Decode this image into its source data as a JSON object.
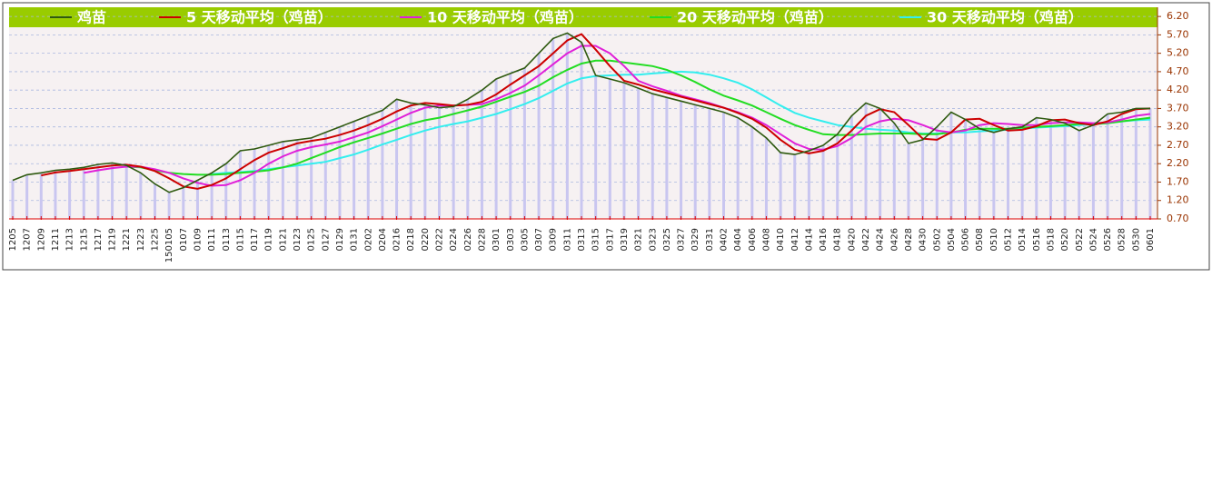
{
  "chart_data": {
    "type": "line",
    "categories": [
      "1205",
      "1207",
      "1209",
      "1211",
      "1213",
      "1215",
      "1217",
      "1219",
      "1221",
      "1223",
      "1225",
      "150105",
      "0107",
      "0109",
      "0111",
      "0113",
      "0115",
      "0117",
      "0119",
      "0121",
      "0123",
      "0125",
      "0127",
      "0129",
      "0131",
      "0202",
      "0204",
      "0216",
      "0218",
      "0220",
      "0222",
      "0224",
      "0226",
      "0228",
      "0301",
      "0303",
      "0305",
      "0307",
      "0309",
      "0311",
      "0313",
      "0315",
      "0317",
      "0319",
      "0321",
      "0323",
      "0325",
      "0327",
      "0329",
      "0331",
      "0402",
      "0404",
      "0406",
      "0408",
      "0410",
      "0412",
      "0414",
      "0416",
      "0418",
      "0420",
      "0422",
      "0424",
      "0426",
      "0428",
      "0430",
      "0502",
      "0504",
      "0506",
      "0508",
      "0510",
      "0512",
      "0514",
      "0516",
      "0518",
      "0520",
      "0522",
      "0524",
      "0526",
      "0528",
      "0530",
      "0601"
    ],
    "series": [
      {
        "name": "鸡苗",
        "color": "#2f5a10",
        "values": [
          1.75,
          1.9,
          1.95,
          2.02,
          2.05,
          2.1,
          2.18,
          2.22,
          2.15,
          1.95,
          1.65,
          1.42,
          1.55,
          1.75,
          1.95,
          2.2,
          2.55,
          2.6,
          2.7,
          2.8,
          2.85,
          2.9,
          3.05,
          3.2,
          3.35,
          3.5,
          3.65,
          3.95,
          3.85,
          3.8,
          3.72,
          3.75,
          3.95,
          4.2,
          4.5,
          4.65,
          4.8,
          5.2,
          5.6,
          5.75,
          5.5,
          4.6,
          4.5,
          4.4,
          4.25,
          4.1,
          4.0,
          3.9,
          3.8,
          3.7,
          3.6,
          3.45,
          3.2,
          2.9,
          2.5,
          2.45,
          2.55,
          2.7,
          3.0,
          3.5,
          3.85,
          3.7,
          3.3,
          2.75,
          2.85,
          3.2,
          3.6,
          3.4,
          3.15,
          3.05,
          3.15,
          3.2,
          3.45,
          3.4,
          3.3,
          3.1,
          3.25,
          3.55,
          3.6,
          3.7,
          3.7
        ]
      },
      {
        "name": "5 天移动平均（鸡苗）",
        "color": "#cc0000",
        "values": [
          null,
          null,
          1.88,
          1.96,
          2.0,
          2.05,
          2.1,
          2.15,
          2.17,
          2.12,
          2.0,
          1.8,
          1.58,
          1.52,
          1.62,
          1.8,
          2.05,
          2.3,
          2.5,
          2.62,
          2.75,
          2.82,
          2.88,
          2.98,
          3.1,
          3.25,
          3.42,
          3.62,
          3.78,
          3.85,
          3.82,
          3.78,
          3.8,
          3.88,
          4.08,
          4.35,
          4.6,
          4.85,
          5.2,
          5.55,
          5.72,
          5.3,
          4.85,
          4.45,
          4.35,
          4.22,
          4.12,
          4.02,
          3.92,
          3.82,
          3.72,
          3.58,
          3.42,
          3.18,
          2.85,
          2.58,
          2.48,
          2.55,
          2.75,
          3.1,
          3.5,
          3.68,
          3.6,
          3.25,
          2.88,
          2.85,
          3.05,
          3.4,
          3.42,
          3.25,
          3.1,
          3.12,
          3.22,
          3.38,
          3.4,
          3.3,
          3.25,
          3.35,
          3.55,
          3.68,
          3.7
        ]
      },
      {
        "name": "10 天移动平均（鸡苗）",
        "color": "#e020d8",
        "values": [
          null,
          null,
          null,
          null,
          null,
          1.95,
          2.02,
          2.08,
          2.12,
          2.12,
          2.05,
          1.95,
          1.8,
          1.68,
          1.6,
          1.62,
          1.75,
          1.95,
          2.2,
          2.4,
          2.55,
          2.65,
          2.72,
          2.8,
          2.92,
          3.05,
          3.22,
          3.4,
          3.58,
          3.72,
          3.78,
          3.78,
          3.8,
          3.82,
          3.95,
          4.12,
          4.32,
          4.6,
          4.9,
          5.2,
          5.4,
          5.4,
          5.2,
          4.85,
          4.45,
          4.3,
          4.18,
          4.05,
          3.95,
          3.85,
          3.72,
          3.6,
          3.45,
          3.25,
          3.0,
          2.75,
          2.6,
          2.58,
          2.68,
          2.9,
          3.2,
          3.35,
          3.42,
          3.38,
          3.25,
          3.1,
          3.05,
          3.1,
          3.25,
          3.3,
          3.28,
          3.25,
          3.25,
          3.3,
          3.32,
          3.32,
          3.3,
          3.32,
          3.4,
          3.5,
          3.55
        ]
      },
      {
        "name": "20 天移动平均（鸡苗）",
        "color": "#22dd22",
        "values": [
          null,
          null,
          null,
          null,
          null,
          null,
          null,
          null,
          2.12,
          2.1,
          2.02,
          1.95,
          1.92,
          1.9,
          1.9,
          1.92,
          1.95,
          1.98,
          2.02,
          2.1,
          2.2,
          2.35,
          2.5,
          2.65,
          2.78,
          2.9,
          3.02,
          3.15,
          3.28,
          3.38,
          3.45,
          3.55,
          3.65,
          3.75,
          3.88,
          4.02,
          4.15,
          4.32,
          4.55,
          4.75,
          4.92,
          5.0,
          5.0,
          4.95,
          4.9,
          4.85,
          4.75,
          4.6,
          4.42,
          4.22,
          4.05,
          3.92,
          3.78,
          3.6,
          3.42,
          3.25,
          3.12,
          3.0,
          2.98,
          2.98,
          3.0,
          3.02,
          3.02,
          3.02,
          3.0,
          3.0,
          3.05,
          3.12,
          3.15,
          3.15,
          3.15,
          3.18,
          3.2,
          3.22,
          3.25,
          3.28,
          3.28,
          3.3,
          3.35,
          3.4,
          3.45
        ]
      },
      {
        "name": "30 天移动平均（鸡苗）",
        "color": "#33eeee",
        "values": [
          null,
          null,
          null,
          null,
          null,
          null,
          null,
          null,
          null,
          null,
          null,
          null,
          null,
          null,
          1.92,
          1.95,
          1.97,
          2.0,
          2.05,
          2.1,
          2.15,
          2.2,
          2.25,
          2.35,
          2.45,
          2.58,
          2.72,
          2.85,
          2.98,
          3.1,
          3.2,
          3.28,
          3.35,
          3.45,
          3.55,
          3.68,
          3.82,
          3.98,
          4.18,
          4.38,
          4.52,
          4.58,
          4.6,
          4.62,
          4.62,
          4.65,
          4.68,
          4.7,
          4.68,
          4.62,
          4.52,
          4.4,
          4.22,
          4.0,
          3.78,
          3.58,
          3.45,
          3.35,
          3.25,
          3.2,
          3.15,
          3.12,
          3.1,
          3.05,
          3.02,
          3.02,
          3.05,
          3.05,
          3.08,
          3.1,
          3.12,
          3.15,
          3.18,
          3.2,
          3.22,
          3.25,
          3.27,
          3.3,
          3.35,
          3.38,
          3.4
        ]
      }
    ],
    "ylim": [
      0.7,
      6.45
    ],
    "yticks": [
      {
        "value": 0.7,
        "label": "0.70"
      },
      {
        "value": 1.2,
        "label": "1.20"
      },
      {
        "value": 1.7,
        "label": "1.70"
      },
      {
        "value": 2.2,
        "label": "2.20"
      },
      {
        "value": 2.7,
        "label": "2.70"
      },
      {
        "value": 3.2,
        "label": "3.20"
      },
      {
        "value": 3.7,
        "label": "3.70"
      },
      {
        "value": 4.2,
        "label": "4.20"
      },
      {
        "value": 4.7,
        "label": "4.70"
      },
      {
        "value": 5.2,
        "label": "5.20"
      },
      {
        "value": 5.7,
        "label": "5.70"
      },
      {
        "value": 6.2,
        "label": "6.20"
      }
    ],
    "grid": true
  }
}
